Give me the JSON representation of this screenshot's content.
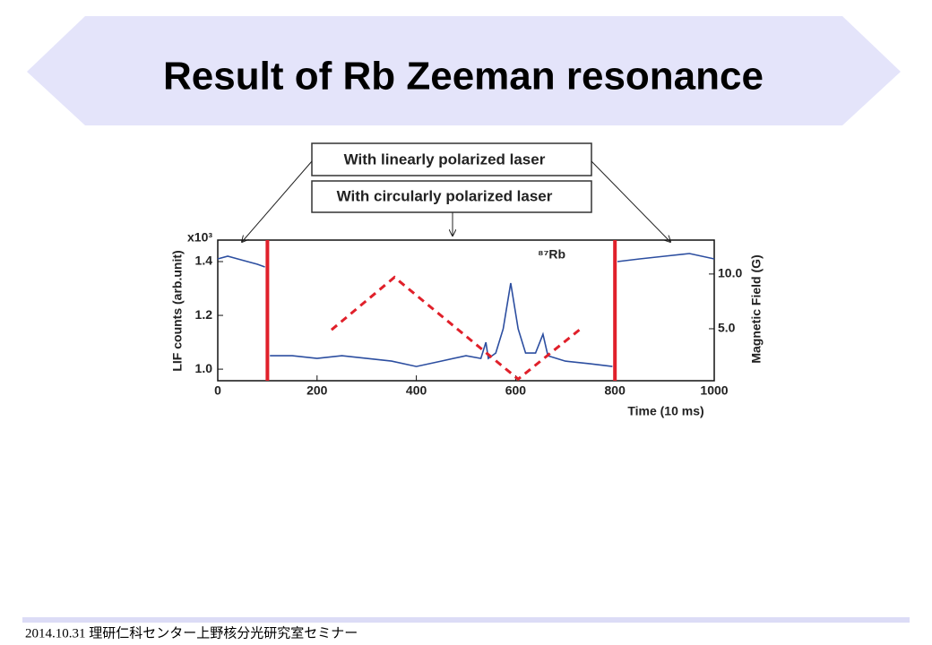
{
  "slide": {
    "title": "Result of Rb Zeeman resonance",
    "footer": "2014.10.31 理研仁科センター上野核分光研究室セミナー"
  },
  "chart_data": {
    "type": "line",
    "x_label": "Time (10 ms)",
    "y_label": "LIF counts (arb.unit)",
    "y2_label": "Magnetic Field (G)",
    "y_multiplier": "x10³",
    "isotope_label": "⁸⁷Rb",
    "annotations": [
      "With linearly polarized laser",
      "With circularly polarized laser"
    ],
    "xlim": [
      0,
      1000
    ],
    "xticks": [
      0,
      200,
      400,
      600,
      800,
      1000
    ],
    "ylim": [
      0.957,
      1.48
    ],
    "yticks": [
      {
        "value": 1,
        "label": "1.0"
      },
      1.2,
      1.4
    ],
    "y2lim": [
      0.25,
      13.1
    ],
    "y2ticks": [
      {
        "value": 5,
        "label": "5.0"
      },
      {
        "value": 10,
        "label": "10.0"
      }
    ],
    "markers": {
      "x": [
        100,
        800
      ],
      "color": "#e0202a"
    },
    "series": [
      {
        "color": "#2c4ea0",
        "x": [
          0,
          20,
          40,
          60,
          80,
          95,
          100,
          105,
          150,
          200,
          250,
          300,
          350,
          400,
          450,
          500,
          530,
          540,
          545,
          560,
          575,
          590,
          605,
          620,
          640,
          655,
          665,
          700,
          750,
          795,
          800,
          805,
          850,
          900,
          950,
          1000
        ],
        "values": [
          1.41,
          1.42,
          1.41,
          1.4,
          1.39,
          1.38,
          null,
          1.05,
          1.05,
          1.04,
          1.05,
          1.04,
          1.03,
          1.01,
          1.03,
          1.05,
          1.04,
          1.1,
          1.04,
          1.06,
          1.15,
          1.32,
          1.15,
          1.06,
          1.06,
          1.13,
          1.05,
          1.03,
          1.02,
          1.01,
          null,
          1.4,
          1.41,
          1.42,
          1.43,
          1.41
        ]
      },
      {
        "color": "#e0202a",
        "axis": "y2",
        "dashed": true,
        "x": [
          229,
          356,
          605,
          731
        ],
        "values": [
          4.9,
          9.7,
          0.4,
          5
        ]
      }
    ]
  }
}
